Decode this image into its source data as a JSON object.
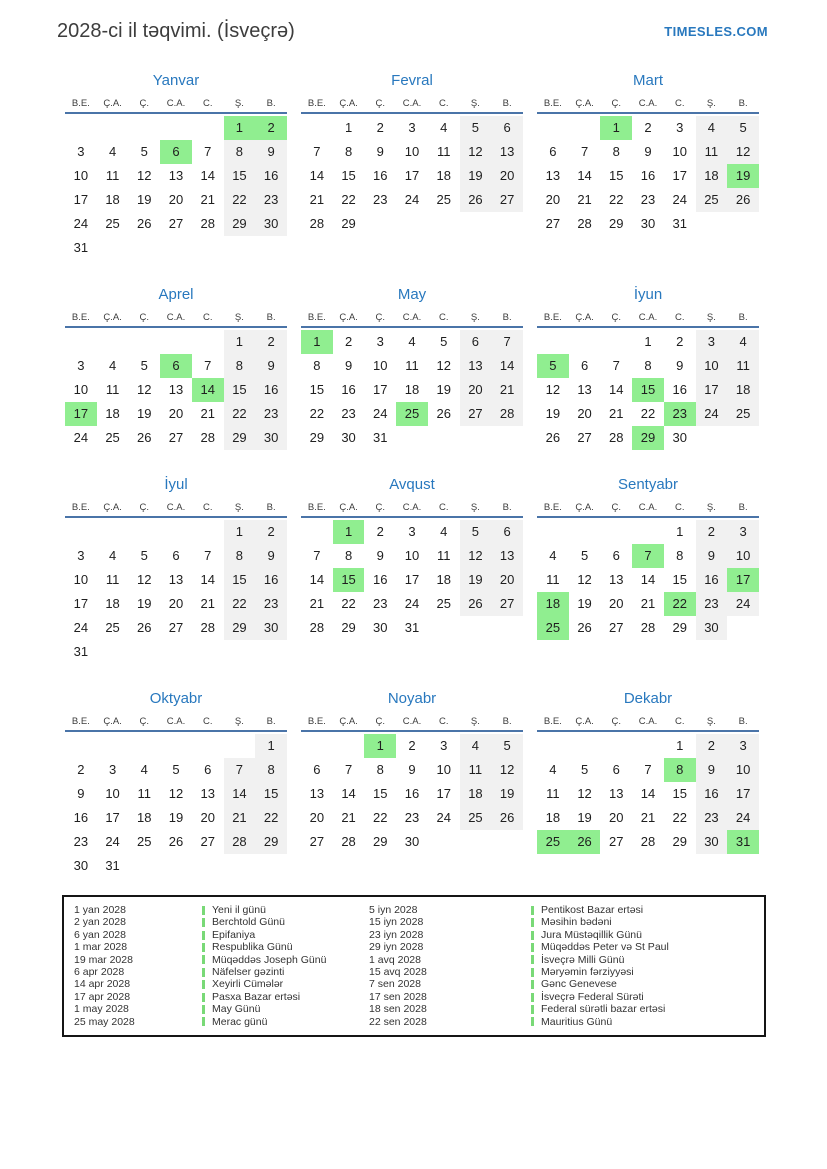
{
  "page": {
    "title": "2028-ci il təqvimi. (İsveçrə)",
    "logo": "TIMESLES.COM"
  },
  "colors": {
    "accent_blue": "#2878be",
    "header_line_blue": "#4a74a8",
    "holiday_green": "#90ee90",
    "weekend_gray": "#f1f1f1",
    "legend_tick_green": "#79d977"
  },
  "weekday_headers": [
    "B.E.",
    "Ç.A.",
    "Ç.",
    "C.A.",
    "C.",
    "Ş.",
    "B."
  ],
  "months": [
    {
      "name": "Yanvar",
      "weeks": [
        [
          "",
          "",
          "",
          "",
          "",
          "1",
          "2"
        ],
        [
          "3",
          "4",
          "5",
          "6",
          "7",
          "8",
          "9"
        ],
        [
          "10",
          "11",
          "12",
          "13",
          "14",
          "15",
          "16"
        ],
        [
          "17",
          "18",
          "19",
          "20",
          "21",
          "22",
          "23"
        ],
        [
          "24",
          "25",
          "26",
          "27",
          "28",
          "29",
          "30"
        ],
        [
          "31",
          "",
          "",
          "",
          "",
          "",
          ""
        ]
      ],
      "holidays": [
        "1",
        "2",
        "6"
      ]
    },
    {
      "name": "Fevral",
      "weeks": [
        [
          "",
          "1",
          "2",
          "3",
          "4",
          "5",
          "6"
        ],
        [
          "7",
          "8",
          "9",
          "10",
          "11",
          "12",
          "13"
        ],
        [
          "14",
          "15",
          "16",
          "17",
          "18",
          "19",
          "20"
        ],
        [
          "21",
          "22",
          "23",
          "24",
          "25",
          "26",
          "27"
        ],
        [
          "28",
          "29",
          "",
          "",
          "",
          "",
          ""
        ]
      ],
      "holidays": []
    },
    {
      "name": "Mart",
      "weeks": [
        [
          "",
          "",
          "1",
          "2",
          "3",
          "4",
          "5"
        ],
        [
          "6",
          "7",
          "8",
          "9",
          "10",
          "11",
          "12"
        ],
        [
          "13",
          "14",
          "15",
          "16",
          "17",
          "18",
          "19"
        ],
        [
          "20",
          "21",
          "22",
          "23",
          "24",
          "25",
          "26"
        ],
        [
          "27",
          "28",
          "29",
          "30",
          "31",
          "",
          ""
        ]
      ],
      "holidays": [
        "1",
        "19"
      ]
    },
    {
      "name": "Aprel",
      "weeks": [
        [
          "",
          "",
          "",
          "",
          "",
          "1",
          "2"
        ],
        [
          "3",
          "4",
          "5",
          "6",
          "7",
          "8",
          "9"
        ],
        [
          "10",
          "11",
          "12",
          "13",
          "14",
          "15",
          "16"
        ],
        [
          "17",
          "18",
          "19",
          "20",
          "21",
          "22",
          "23"
        ],
        [
          "24",
          "25",
          "26",
          "27",
          "28",
          "29",
          "30"
        ]
      ],
      "holidays": [
        "6",
        "14",
        "17"
      ]
    },
    {
      "name": "May",
      "weeks": [
        [
          "1",
          "2",
          "3",
          "4",
          "5",
          "6",
          "7"
        ],
        [
          "8",
          "9",
          "10",
          "11",
          "12",
          "13",
          "14"
        ],
        [
          "15",
          "16",
          "17",
          "18",
          "19",
          "20",
          "21"
        ],
        [
          "22",
          "23",
          "24",
          "25",
          "26",
          "27",
          "28"
        ],
        [
          "29",
          "30",
          "31",
          "",
          "",
          "",
          ""
        ]
      ],
      "holidays": [
        "1",
        "25"
      ]
    },
    {
      "name": "İyun",
      "weeks": [
        [
          "",
          "",
          "",
          "1",
          "2",
          "3",
          "4"
        ],
        [
          "5",
          "6",
          "7",
          "8",
          "9",
          "10",
          "11"
        ],
        [
          "12",
          "13",
          "14",
          "15",
          "16",
          "17",
          "18"
        ],
        [
          "19",
          "20",
          "21",
          "22",
          "23",
          "24",
          "25"
        ],
        [
          "26",
          "27",
          "28",
          "29",
          "30",
          "",
          ""
        ]
      ],
      "holidays": [
        "5",
        "15",
        "23",
        "29"
      ]
    },
    {
      "name": "İyul",
      "weeks": [
        [
          "",
          "",
          "",
          "",
          "",
          "1",
          "2"
        ],
        [
          "3",
          "4",
          "5",
          "6",
          "7",
          "8",
          "9"
        ],
        [
          "10",
          "11",
          "12",
          "13",
          "14",
          "15",
          "16"
        ],
        [
          "17",
          "18",
          "19",
          "20",
          "21",
          "22",
          "23"
        ],
        [
          "24",
          "25",
          "26",
          "27",
          "28",
          "29",
          "30"
        ],
        [
          "31",
          "",
          "",
          "",
          "",
          "",
          ""
        ]
      ],
      "holidays": []
    },
    {
      "name": "Avqust",
      "weeks": [
        [
          "",
          "1",
          "2",
          "3",
          "4",
          "5",
          "6"
        ],
        [
          "7",
          "8",
          "9",
          "10",
          "11",
          "12",
          "13"
        ],
        [
          "14",
          "15",
          "16",
          "17",
          "18",
          "19",
          "20"
        ],
        [
          "21",
          "22",
          "23",
          "24",
          "25",
          "26",
          "27"
        ],
        [
          "28",
          "29",
          "30",
          "31",
          "",
          "",
          ""
        ]
      ],
      "holidays": [
        "1",
        "15"
      ]
    },
    {
      "name": "Sentyabr",
      "weeks": [
        [
          "",
          "",
          "",
          "",
          "1",
          "2",
          "3"
        ],
        [
          "4",
          "5",
          "6",
          "7",
          "8",
          "9",
          "10"
        ],
        [
          "11",
          "12",
          "13",
          "14",
          "15",
          "16",
          "17"
        ],
        [
          "18",
          "19",
          "20",
          "21",
          "22",
          "23",
          "24"
        ],
        [
          "25",
          "26",
          "27",
          "28",
          "29",
          "30",
          ""
        ]
      ],
      "holidays": [
        "7",
        "17",
        "18",
        "22",
        "25"
      ]
    },
    {
      "name": "Oktyabr",
      "weeks": [
        [
          "",
          "",
          "",
          "",
          "",
          "",
          "1"
        ],
        [
          "2",
          "3",
          "4",
          "5",
          "6",
          "7",
          "8"
        ],
        [
          "9",
          "10",
          "11",
          "12",
          "13",
          "14",
          "15"
        ],
        [
          "16",
          "17",
          "18",
          "19",
          "20",
          "21",
          "22"
        ],
        [
          "23",
          "24",
          "25",
          "26",
          "27",
          "28",
          "29"
        ],
        [
          "30",
          "31",
          "",
          "",
          "",
          "",
          ""
        ]
      ],
      "holidays": []
    },
    {
      "name": "Noyabr",
      "weeks": [
        [
          "",
          "",
          "1",
          "2",
          "3",
          "4",
          "5"
        ],
        [
          "6",
          "7",
          "8",
          "9",
          "10",
          "11",
          "12"
        ],
        [
          "13",
          "14",
          "15",
          "16",
          "17",
          "18",
          "19"
        ],
        [
          "20",
          "21",
          "22",
          "23",
          "24",
          "25",
          "26"
        ],
        [
          "27",
          "28",
          "29",
          "30",
          "",
          "",
          ""
        ]
      ],
      "holidays": [
        "1"
      ]
    },
    {
      "name": "Dekabr",
      "weeks": [
        [
          "",
          "",
          "",
          "",
          "1",
          "2",
          "3"
        ],
        [
          "4",
          "5",
          "6",
          "7",
          "8",
          "9",
          "10"
        ],
        [
          "11",
          "12",
          "13",
          "14",
          "15",
          "16",
          "17"
        ],
        [
          "18",
          "19",
          "20",
          "21",
          "22",
          "23",
          "24"
        ],
        [
          "25",
          "26",
          "27",
          "28",
          "29",
          "30",
          "31"
        ]
      ],
      "holidays": [
        "8",
        "25",
        "26",
        "31"
      ]
    }
  ],
  "legend": {
    "columns": [
      [
        {
          "date": "1 yan 2028",
          "name": "Yeni il günü"
        },
        {
          "date": "2 yan 2028",
          "name": "Berchtold Günü"
        },
        {
          "date": "6 yan 2028",
          "name": "Epifaniya"
        },
        {
          "date": "1 mar 2028",
          "name": "Respublika Günü"
        },
        {
          "date": "19 mar 2028",
          "name": "Müqəddəs Joseph Günü"
        },
        {
          "date": "6 apr 2028",
          "name": "Näfelser gəzinti"
        },
        {
          "date": "14 apr 2028",
          "name": "Xeyirli Cümələr"
        },
        {
          "date": "17 apr 2028",
          "name": "Pasxa Bazar ertəsi"
        },
        {
          "date": "1 may 2028",
          "name": "May Günü"
        },
        {
          "date": "25 may 2028",
          "name": "Merac günü"
        }
      ],
      [
        {
          "date": "5 iyn 2028",
          "name": "Pentikost Bazar ertəsi"
        },
        {
          "date": "15 iyn 2028",
          "name": "Məsihin bədəni"
        },
        {
          "date": "23 iyn 2028",
          "name": "Jura Müstəqillik Günü"
        },
        {
          "date": "29 iyn 2028",
          "name": "Müqəddəs Peter və St Paul"
        },
        {
          "date": "1 avq 2028",
          "name": "İsveçrə Milli Günü"
        },
        {
          "date": "15 avq 2028",
          "name": "Məryəmin fərziyyəsi"
        },
        {
          "date": "7 sen 2028",
          "name": "Gənc Genevese"
        },
        {
          "date": "17 sen 2028",
          "name": "İsveçrə Federal Sürəti"
        },
        {
          "date": "18 sen 2028",
          "name": "Federal sürətli bazar ertəsi"
        },
        {
          "date": "22 sen 2028",
          "name": "Mauritius Günü"
        }
      ]
    ]
  }
}
